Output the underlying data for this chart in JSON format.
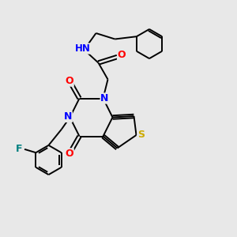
{
  "background_color": "#e8e8e8",
  "bond_color": "#000000",
  "atom_colors": {
    "N": "#0000ff",
    "O": "#ff0000",
    "S": "#ccaa00",
    "F": "#008080",
    "H": "#008080",
    "C": "#000000"
  },
  "bond_width": 1.4,
  "dbo": 0.08,
  "figsize": [
    3.0,
    3.0
  ],
  "dpi": 100,
  "xlim": [
    0,
    10
  ],
  "ylim": [
    0,
    10
  ]
}
